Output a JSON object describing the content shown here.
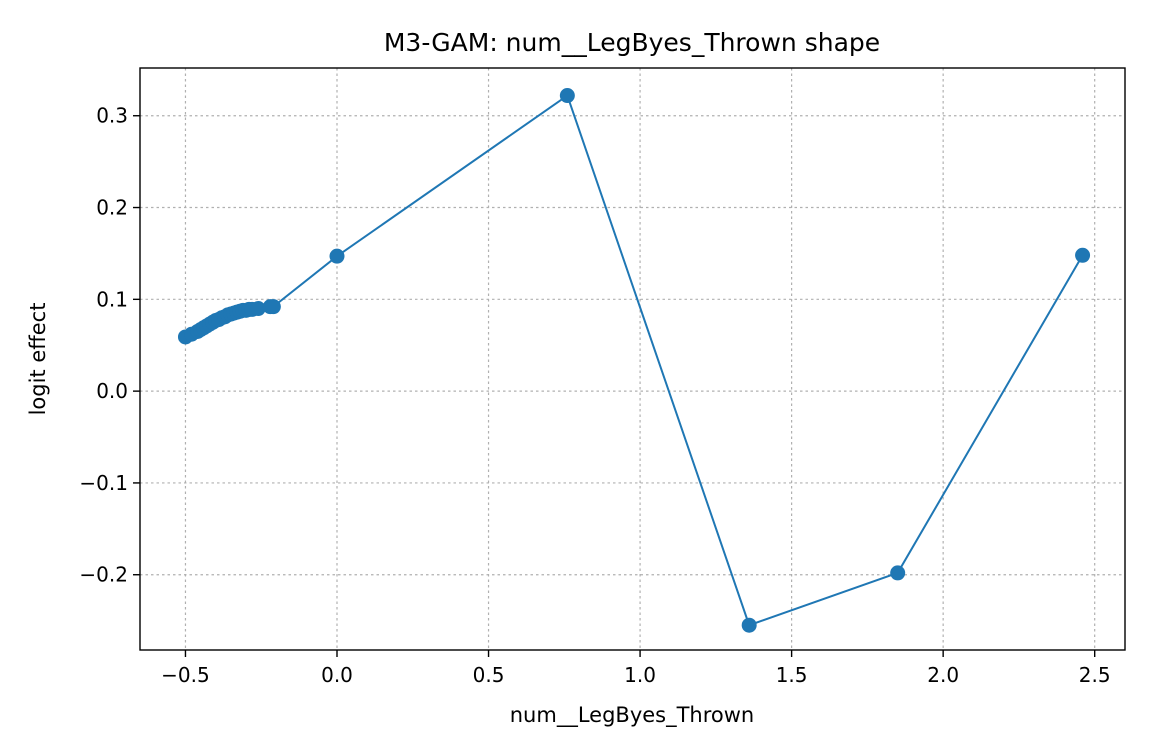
{
  "chart_data": {
    "type": "line",
    "title": "M3-GAM: num__LegByes_Thrown shape",
    "xlabel": "num__LegByes_Thrown",
    "ylabel": "logit effect",
    "xlim": [
      -0.65,
      2.6
    ],
    "ylim": [
      -0.282,
      0.352
    ],
    "xticks": [
      -0.5,
      0.0,
      0.5,
      1.0,
      1.5,
      2.0,
      2.5
    ],
    "xtick_labels": [
      "−0.5",
      "0.0",
      "0.5",
      "1.0",
      "1.5",
      "2.0",
      "2.5"
    ],
    "yticks": [
      -0.2,
      -0.1,
      0.0,
      0.1,
      0.2,
      0.3
    ],
    "ytick_labels": [
      "−0.2",
      "−0.1",
      "0.0",
      "0.1",
      "0.2",
      "0.3"
    ],
    "grid": true,
    "color": "#1f77b4",
    "series": [
      {
        "x": [
          -0.5,
          -0.48,
          -0.46,
          -0.45,
          -0.44,
          -0.43,
          -0.42,
          -0.41,
          -0.4,
          -0.39,
          -0.38,
          -0.37,
          -0.36,
          -0.35,
          -0.34,
          -0.33,
          -0.32,
          -0.31,
          -0.3,
          -0.29,
          -0.28,
          -0.26,
          -0.22,
          -0.21,
          0.0,
          0.76,
          1.36,
          1.85,
          2.46
        ],
        "y": [
          0.059,
          0.062,
          0.065,
          0.067,
          0.069,
          0.071,
          0.073,
          0.075,
          0.077,
          0.078,
          0.08,
          0.081,
          0.083,
          0.084,
          0.085,
          0.086,
          0.087,
          0.088,
          0.088,
          0.089,
          0.089,
          0.09,
          0.092,
          0.092,
          0.147,
          0.322,
          -0.255,
          -0.198,
          0.148
        ]
      }
    ]
  }
}
